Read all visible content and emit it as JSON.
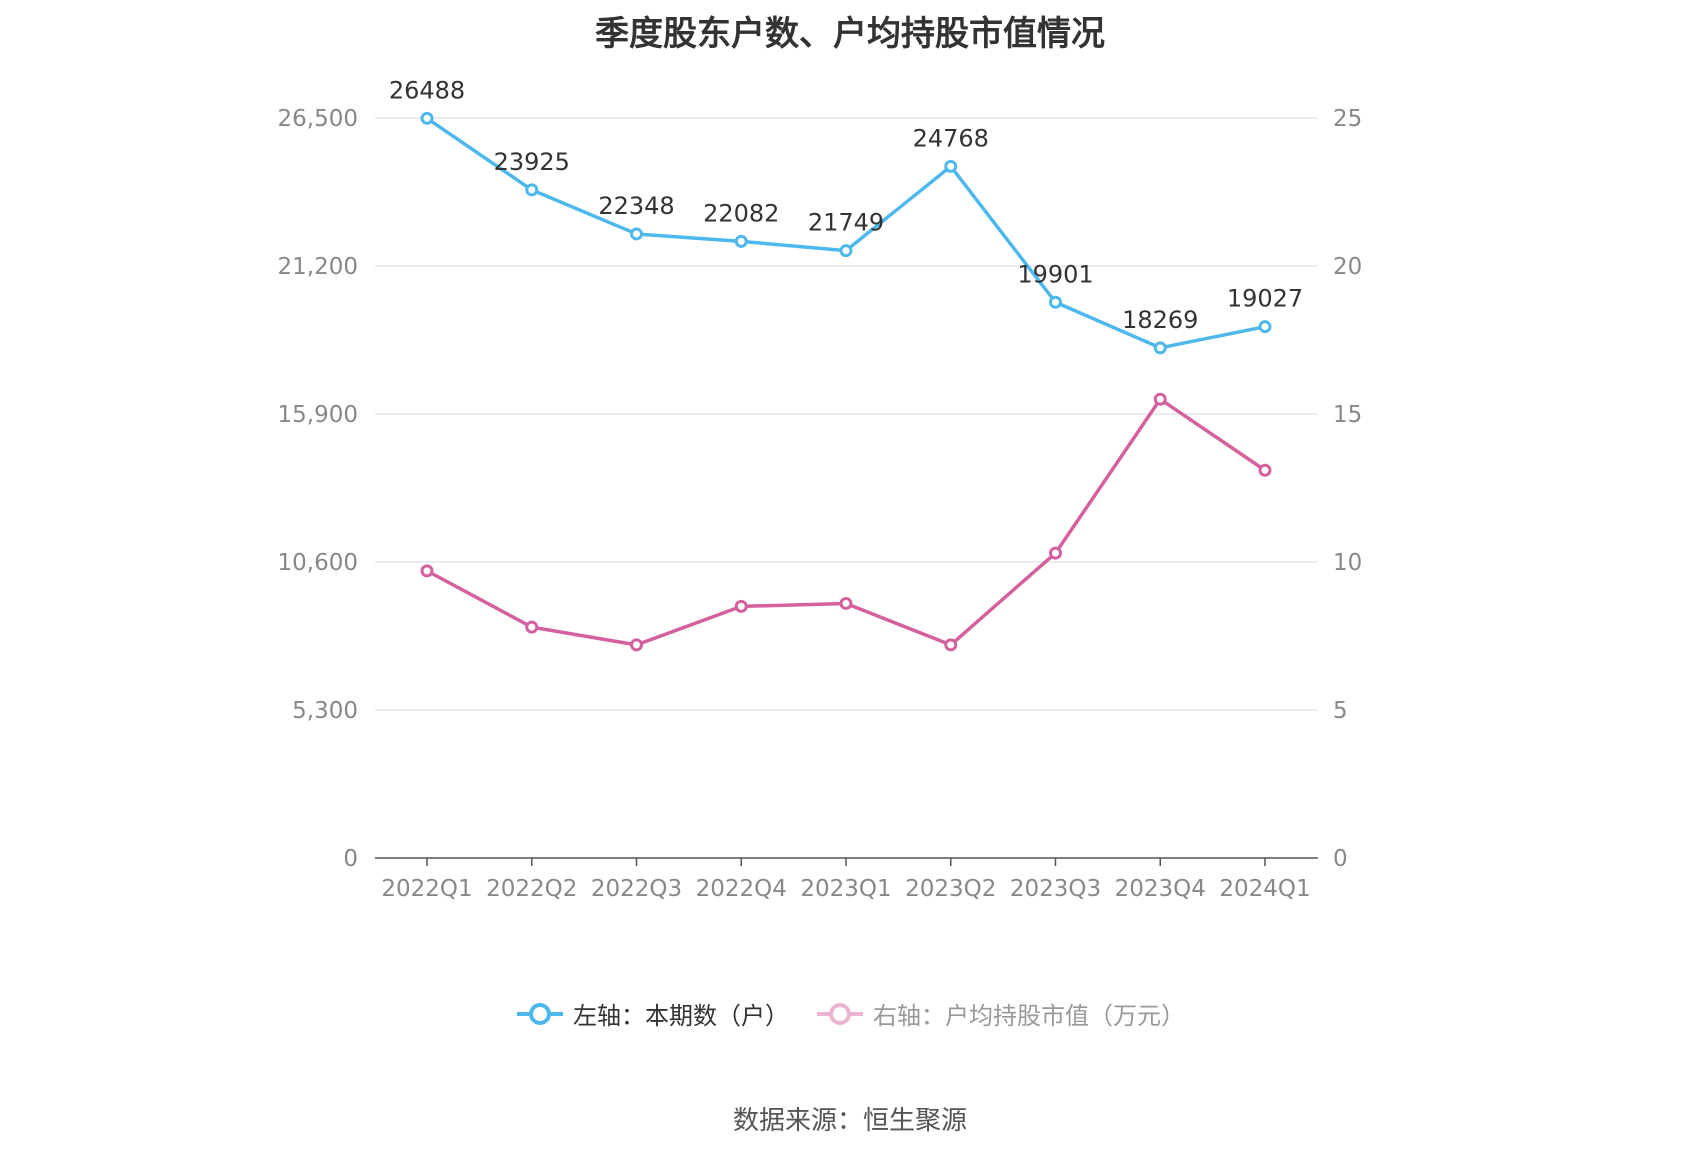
{
  "chart_data": {
    "type": "line",
    "title": "季度股东户数、户均持股市值情况",
    "categories": [
      "2022Q1",
      "2022Q2",
      "2022Q3",
      "2022Q4",
      "2023Q1",
      "2023Q2",
      "2023Q3",
      "2023Q4",
      "2024Q1"
    ],
    "left_axis": {
      "ticks": [
        "0",
        "5,300",
        "10,600",
        "15,900",
        "21,200",
        "26,500"
      ],
      "range": [
        0,
        26500
      ]
    },
    "right_axis": {
      "ticks": [
        "0",
        "5",
        "10",
        "15",
        "20",
        "25"
      ],
      "range": [
        0,
        25
      ]
    },
    "series": [
      {
        "name": "左轴：本期数（户）",
        "axis": "left",
        "color": "#4db8ec",
        "values": [
          26488,
          23925,
          22348,
          22082,
          21749,
          24768,
          19901,
          18269,
          19027
        ],
        "labels": [
          "26488",
          "23925",
          "22348",
          "22082",
          "21749",
          "24768",
          "19901",
          "18269",
          "19027"
        ]
      },
      {
        "name": "右轴：户均持股市值（万元）",
        "axis": "right",
        "color": "#d4609e",
        "values": [
          9.7,
          7.8,
          7.2,
          8.5,
          8.6,
          7.2,
          10.3,
          15.5,
          13.1
        ]
      }
    ],
    "grid": true,
    "legend_position": "bottom",
    "source": "数据来源：恒生聚源"
  }
}
